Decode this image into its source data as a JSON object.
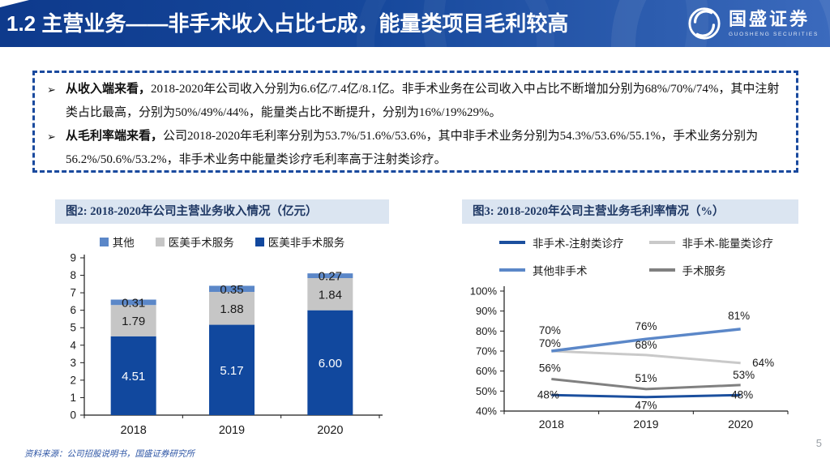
{
  "header": {
    "title": "1.2 主营业务——非手术收入占比七成，能量类项目毛利较高",
    "logo": {
      "name": "国盛证券",
      "sub": "GUOSHENG SECURITIES"
    }
  },
  "summary": {
    "bullets": [
      {
        "lead": "从收入端来看，",
        "text": "2018-2020年公司收入分别为6.6亿/7.4亿/8.1亿。非手术业务在公司收入中占比不断增加分别为68%/70%/74%，其中注射类占比最高，分别为50%/49%/44%，能量类占比不断提升，分别为16%/19%29%。"
      },
      {
        "lead": "从毛利率端来看，",
        "text": "公司2018-2020年毛利率分别为53.7%/51.6%/53.6%，其中非手术业务分别为54.3%/53.6%/55.1%，手术业务分别为56.2%/50.6%/53.2%，非手术业务中能量类诊疗毛利率高于注射类诊疗。"
      }
    ]
  },
  "chart_data": [
    {
      "type": "bar",
      "stacked": true,
      "title": "图2: 2018-2020年公司主营业务收入情况（亿元）",
      "categories": [
        "2018",
        "2019",
        "2020"
      ],
      "series": [
        {
          "name": "医美非手术服务",
          "values": [
            4.51,
            5.17,
            6.0
          ],
          "color": "#11489e",
          "label_color": "#ffffff"
        },
        {
          "name": "医美手术服务",
          "values": [
            1.79,
            1.88,
            1.84
          ],
          "color": "#c6c6c6",
          "label_color": "#1a1a1a"
        },
        {
          "name": "其他",
          "values": [
            0.31,
            0.35,
            0.27
          ],
          "color": "#5b87c8",
          "label_color": "#1a1a1a"
        }
      ],
      "legend_order": [
        "其他",
        "医美手术服务",
        "医美非手术服务"
      ],
      "ylim": [
        0,
        9
      ],
      "ytick_step": 1,
      "grid": false,
      "legend_position": "top"
    },
    {
      "type": "line",
      "title": "图3: 2018-2020年公司主营业务毛利率情况（%）",
      "categories": [
        "2018",
        "2019",
        "2020"
      ],
      "series": [
        {
          "name": "非手术-注射类诊疗",
          "values": [
            48,
            47,
            48
          ],
          "color": "#1b4f9e"
        },
        {
          "name": "非手术-能量类诊疗",
          "values": [
            70,
            68,
            64
          ],
          "color": "#c9c9c9"
        },
        {
          "name": "其他非手术",
          "values": [
            70,
            76,
            81
          ],
          "color": "#5b87c8"
        },
        {
          "name": "手术服务",
          "values": [
            56,
            51,
            53
          ],
          "color": "#808080"
        }
      ],
      "ylim": [
        40,
        100
      ],
      "ytick_step": 10,
      "ytick_suffix": "%",
      "grid": false,
      "legend_position": "top"
    }
  ],
  "footer": {
    "source": "资料来源：公司招股说明书，国盛证券研究所",
    "page": "5"
  },
  "colors": {
    "header_gradient_left": "#0e3a8c",
    "header_gradient_right": "#3b6abd",
    "dashed_border": "#1a4a9e",
    "figure_title_bg": "#dbe5f1",
    "figure_title_fg": "#1f3864",
    "source_text": "#2d55a5"
  }
}
